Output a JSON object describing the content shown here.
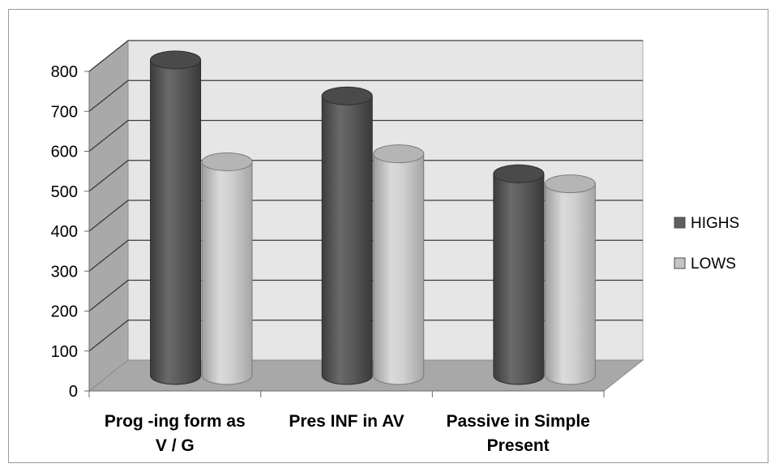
{
  "chart_data": {
    "type": "bar",
    "categories": [
      "Prog -ing form as V / G",
      "Pres INF in AV",
      "Passive in Simple Present"
    ],
    "category_lines": [
      [
        "Prog -ing form as",
        "V / G"
      ],
      [
        "Pres INF in AV"
      ],
      [
        "Passive in Simple",
        "Present"
      ]
    ],
    "series": [
      {
        "name": "HIGHS",
        "values": [
          790,
          700,
          505
        ],
        "color": "#5f5f5f"
      },
      {
        "name": "LOWS",
        "values": [
          535,
          555,
          480
        ],
        "color": "#c4c4c4"
      }
    ],
    "y_ticks": [
      0,
      100,
      200,
      300,
      400,
      500,
      600,
      700,
      800
    ],
    "ylim": [
      0,
      800
    ],
    "grid": true,
    "legend_position": "right",
    "style": "3d-cylinder"
  }
}
